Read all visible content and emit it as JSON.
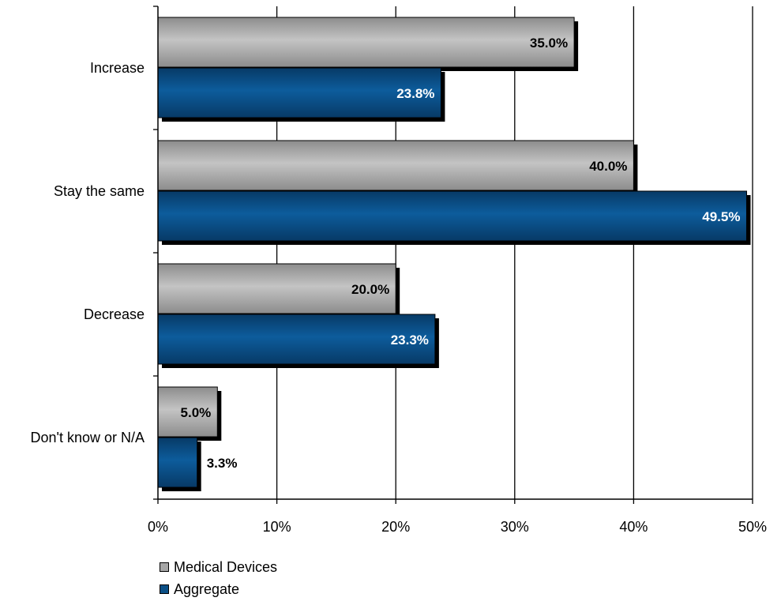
{
  "chart_data": {
    "type": "bar",
    "orientation": "horizontal",
    "categories": [
      "Increase",
      "Stay the same",
      "Decrease",
      "Don't know or N/A"
    ],
    "series": [
      {
        "name": "Medical Devices",
        "values": [
          35.0,
          40.0,
          20.0,
          5.0
        ],
        "labels": [
          "35.0%",
          "40.0%",
          "20.0%",
          "5.0%"
        ],
        "color": "#a6a6a6"
      },
      {
        "name": "Aggregate",
        "values": [
          23.8,
          49.5,
          23.3,
          3.3
        ],
        "labels": [
          "23.8%",
          "49.5%",
          "23.3%",
          "3.3%"
        ],
        "color": "#0b4f86"
      }
    ],
    "x_ticks": [
      "0%",
      "10%",
      "20%",
      "30%",
      "40%",
      "50%"
    ],
    "xlim": [
      0,
      50
    ],
    "grid": "vertical",
    "legend_position": "bottom-left",
    "title": "",
    "xlabel": "",
    "ylabel": ""
  }
}
